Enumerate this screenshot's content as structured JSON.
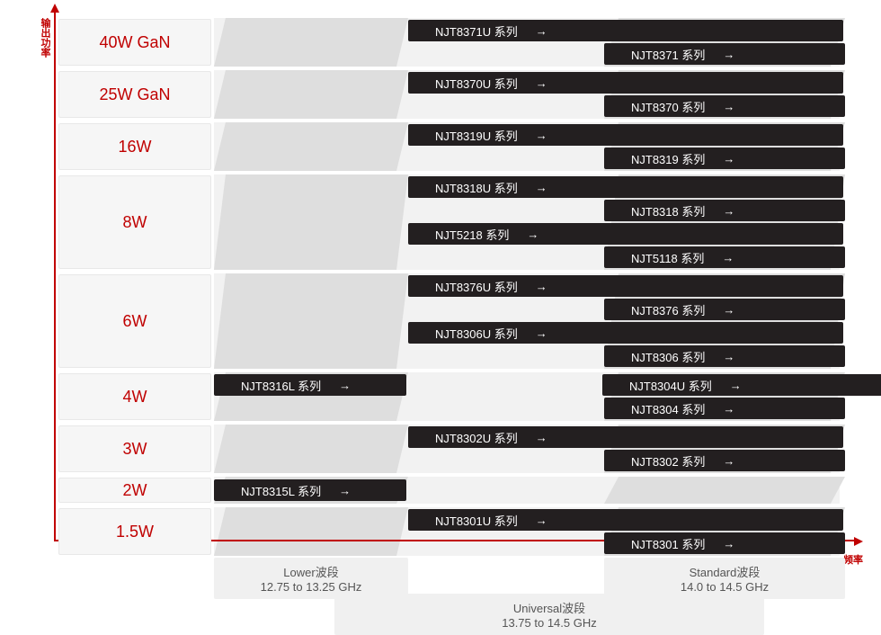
{
  "axes": {
    "y_label": "输出功率",
    "x_label": "频率",
    "axis_color": "#c00000"
  },
  "bands": {
    "lower": {
      "title": "Lower波段",
      "range": "12.75 to 13.25 GHz"
    },
    "universal": {
      "title": "Universal波段",
      "range": "13.75 to 14.5 GHz"
    },
    "standard": {
      "title": "Standard波段",
      "range": "14.0 to 14.5 GHz"
    }
  },
  "rows": [
    {
      "power": "40W GaN",
      "series": [
        {
          "band": "universal",
          "label": "NJT8371U 系列"
        },
        {
          "band": "standard",
          "label": "NJT8371 系列"
        }
      ]
    },
    {
      "power": "25W GaN",
      "series": [
        {
          "band": "universal",
          "label": "NJT8370U 系列"
        },
        {
          "band": "standard",
          "label": "NJT8370 系列"
        }
      ]
    },
    {
      "power": "16W",
      "series": [
        {
          "band": "universal",
          "label": "NJT8319U 系列"
        },
        {
          "band": "standard",
          "label": "NJT8319 系列"
        }
      ]
    },
    {
      "power": "8W",
      "series": [
        {
          "band": "universal",
          "label": "NJT8318U 系列"
        },
        {
          "band": "standard",
          "label": "NJT8318 系列"
        },
        {
          "band": "universal",
          "label": "NJT5218 系列"
        },
        {
          "band": "standard",
          "label": "NJT5118 系列"
        }
      ]
    },
    {
      "power": "6W",
      "series": [
        {
          "band": "universal",
          "label": "NJT8376U 系列"
        },
        {
          "band": "standard",
          "label": "NJT8376 系列"
        },
        {
          "band": "universal",
          "label": "NJT8306U 系列"
        },
        {
          "band": "standard",
          "label": "NJT8306 系列"
        }
      ]
    },
    {
      "power": "4W",
      "series": [
        {
          "band": "lower",
          "label": "NJT8316L 系列"
        },
        {
          "band": "universal",
          "label": "NJT8304U 系列",
          "pairWithPrev": true
        },
        {
          "band": "standard",
          "label": "NJT8304 系列"
        }
      ]
    },
    {
      "power": "3W",
      "series": [
        {
          "band": "universal",
          "label": "NJT8302U 系列"
        },
        {
          "band": "standard",
          "label": "NJT8302 系列"
        }
      ]
    },
    {
      "power": "2W",
      "series": [
        {
          "band": "lower",
          "label": "NJT8315L 系列"
        }
      ]
    },
    {
      "power": "1.5W",
      "series": [
        {
          "band": "universal",
          "label": "NJT8301U 系列"
        },
        {
          "band": "standard",
          "label": "NJT8301 系列"
        }
      ]
    }
  ],
  "colors": {
    "power_text": "#c00000",
    "power_bg": "#f6f6f6",
    "bar_bg": "#231f20",
    "bar_text": "#ffffff",
    "shade": "#dedede",
    "legend_bg": "#f0f0f0",
    "legend_text": "#555555"
  },
  "arrow_glyph": "→"
}
